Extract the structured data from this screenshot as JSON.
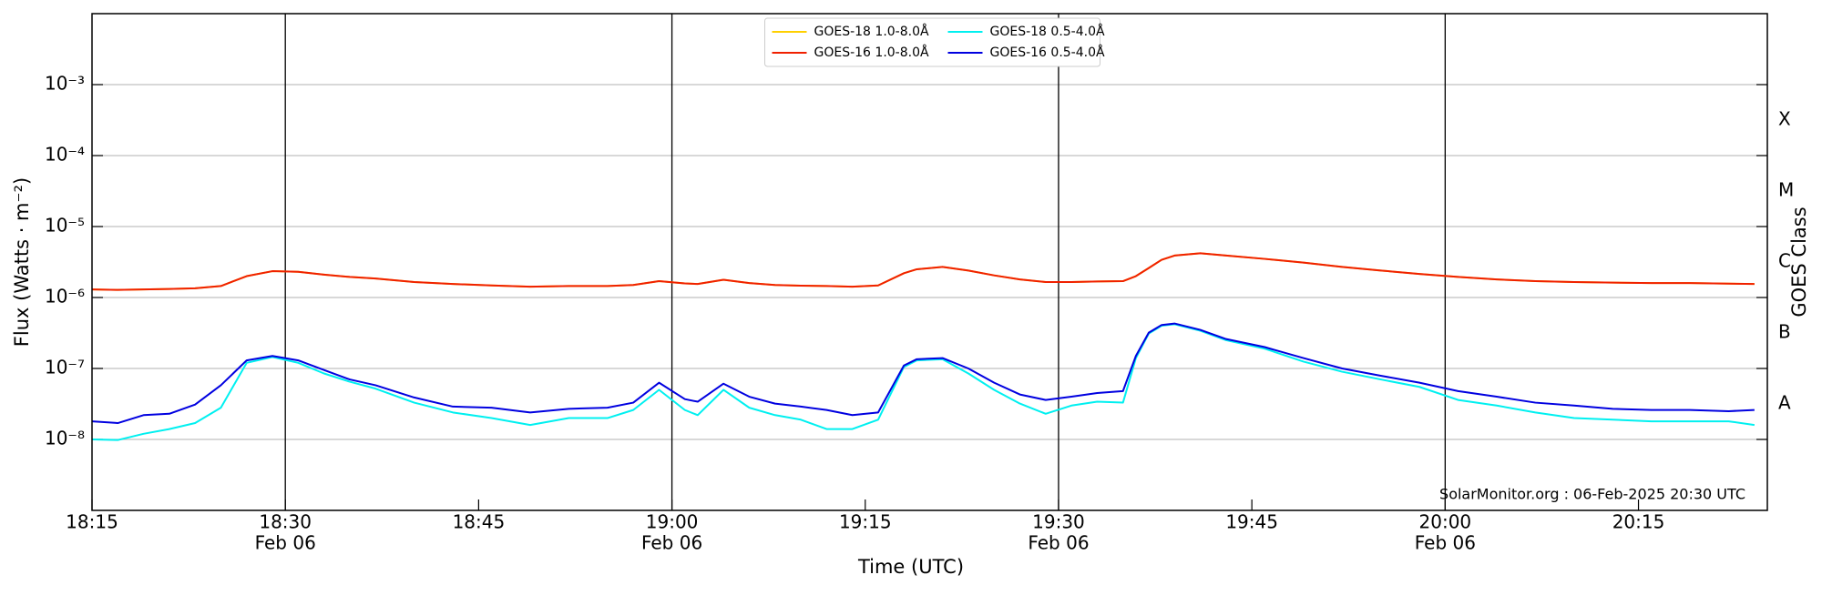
{
  "chart_data": {
    "type": "line",
    "xlabel": "Time (UTC)",
    "ylabel": "Flux (Watts · m⁻²)",
    "y2label": "GOES Class",
    "annotation": "SolarMonitor.org : 06-Feb-2025 20:30 UTC",
    "log_y": true,
    "grid": true,
    "legend_position": "upper center",
    "xlim": [
      "18:15",
      "20:25"
    ],
    "xticks": [
      "18:15",
      "18:30",
      "18:45",
      "19:00",
      "19:15",
      "19:30",
      "19:45",
      "20:00",
      "20:15"
    ],
    "xtick_sublabels": [
      null,
      "Feb 06",
      null,
      "Feb 06",
      null,
      "Feb 06",
      null,
      "Feb 06",
      null
    ],
    "ylim": [
      1e-09,
      0.01
    ],
    "yticks": [
      {
        "value": 1e-08,
        "label": "10⁻⁸"
      },
      {
        "value": 1e-07,
        "label": "10⁻⁷"
      },
      {
        "value": 1e-06,
        "label": "10⁻⁶"
      },
      {
        "value": 1e-05,
        "label": "10⁻⁵"
      },
      {
        "value": 0.0001,
        "label": "10⁻⁴"
      },
      {
        "value": 0.001,
        "label": "10⁻³"
      }
    ],
    "y2lim": [
      1e-09,
      0.01
    ],
    "y2ticks": [
      {
        "value": 3.16e-08,
        "label": "A"
      },
      {
        "value": 3.16e-07,
        "label": "B"
      },
      {
        "value": 3.16e-06,
        "label": "C"
      },
      {
        "value": 3.16e-05,
        "label": "M"
      },
      {
        "value": 0.000316,
        "label": "X"
      }
    ],
    "x": [
      "18:15",
      "18:17",
      "18:19",
      "18:21",
      "18:23",
      "18:25",
      "18:27",
      "18:29",
      "18:31",
      "18:33",
      "18:35",
      "18:37",
      "18:40",
      "18:43",
      "18:46",
      "18:49",
      "18:52",
      "18:55",
      "18:57",
      "18:59",
      "19:01",
      "19:02",
      "19:04",
      "19:06",
      "19:08",
      "19:10",
      "19:12",
      "19:14",
      "19:16",
      "19:18",
      "19:19",
      "19:21",
      "19:23",
      "19:25",
      "19:27",
      "19:29",
      "19:31",
      "19:33",
      "19:35",
      "19:36",
      "19:37",
      "19:38",
      "19:39",
      "19:41",
      "19:43",
      "19:46",
      "19:49",
      "19:52",
      "19:55",
      "19:58",
      "20:01",
      "20:04",
      "20:07",
      "20:10",
      "20:13",
      "20:16",
      "20:19",
      "20:22",
      "20:24"
    ],
    "series": [
      {
        "name": "GOES-18 1.0-8.0Å",
        "color": "#ffd000",
        "values": [
          1.3e-06,
          1.28e-06,
          1.3e-06,
          1.32e-06,
          1.35e-06,
          1.45e-06,
          2e-06,
          2.35e-06,
          2.3e-06,
          2.1e-06,
          1.95e-06,
          1.85e-06,
          1.65e-06,
          1.55e-06,
          1.48e-06,
          1.42e-06,
          1.45e-06,
          1.45e-06,
          1.5e-06,
          1.7e-06,
          1.58e-06,
          1.55e-06,
          1.78e-06,
          1.6e-06,
          1.5e-06,
          1.47e-06,
          1.45e-06,
          1.42e-06,
          1.48e-06,
          2.2e-06,
          2.5e-06,
          2.7e-06,
          2.4e-06,
          2.05e-06,
          1.8e-06,
          1.65e-06,
          1.65e-06,
          1.68e-06,
          1.7e-06,
          2e-06,
          2.6e-06,
          3.4e-06,
          3.9e-06,
          4.2e-06,
          3.9e-06,
          3.5e-06,
          3.1e-06,
          2.7e-06,
          2.4e-06,
          2.15e-06,
          1.95e-06,
          1.8e-06,
          1.7e-06,
          1.65e-06,
          1.62e-06,
          1.6e-06,
          1.6e-06,
          1.57e-06,
          1.55e-06
        ]
      },
      {
        "name": "GOES-16 1.0-8.0Å",
        "color": "#f02000",
        "values": [
          1.3e-06,
          1.28e-06,
          1.3e-06,
          1.32e-06,
          1.35e-06,
          1.45e-06,
          2e-06,
          2.35e-06,
          2.3e-06,
          2.1e-06,
          1.95e-06,
          1.85e-06,
          1.65e-06,
          1.55e-06,
          1.48e-06,
          1.42e-06,
          1.45e-06,
          1.45e-06,
          1.5e-06,
          1.7e-06,
          1.58e-06,
          1.55e-06,
          1.78e-06,
          1.6e-06,
          1.5e-06,
          1.47e-06,
          1.45e-06,
          1.42e-06,
          1.48e-06,
          2.2e-06,
          2.5e-06,
          2.7e-06,
          2.4e-06,
          2.05e-06,
          1.8e-06,
          1.65e-06,
          1.65e-06,
          1.68e-06,
          1.7e-06,
          2e-06,
          2.6e-06,
          3.4e-06,
          3.9e-06,
          4.2e-06,
          3.9e-06,
          3.5e-06,
          3.1e-06,
          2.7e-06,
          2.4e-06,
          2.15e-06,
          1.95e-06,
          1.8e-06,
          1.7e-06,
          1.65e-06,
          1.62e-06,
          1.6e-06,
          1.6e-06,
          1.57e-06,
          1.55e-06
        ]
      },
      {
        "name": "GOES-18 0.5-4.0Å",
        "color": "#00f0f0",
        "values": [
          1e-08,
          9.8e-09,
          1.2e-08,
          1.4e-08,
          1.7e-08,
          2.8e-08,
          1.2e-07,
          1.45e-07,
          1.2e-07,
          8.5e-08,
          6.5e-08,
          5.2e-08,
          3.3e-08,
          2.4e-08,
          2e-08,
          1.6e-08,
          2e-08,
          2e-08,
          2.6e-08,
          5e-08,
          2.6e-08,
          2.2e-08,
          5e-08,
          2.8e-08,
          2.2e-08,
          1.9e-08,
          1.4e-08,
          1.4e-08,
          1.9e-08,
          1.05e-07,
          1.3e-07,
          1.35e-07,
          8.5e-08,
          5e-08,
          3.2e-08,
          2.3e-08,
          3e-08,
          3.4e-08,
          3.3e-08,
          1.4e-07,
          3.1e-07,
          4e-07,
          4.2e-07,
          3.4e-07,
          2.5e-07,
          1.9e-07,
          1.25e-07,
          9e-08,
          7e-08,
          5.5e-08,
          3.6e-08,
          3e-08,
          2.4e-08,
          2e-08,
          1.9e-08,
          1.8e-08,
          1.8e-08,
          1.8e-08,
          1.6e-08
        ]
      },
      {
        "name": "GOES-16 0.5-4.0Å",
        "color": "#0000e0",
        "values": [
          1.8e-08,
          1.7e-08,
          2.2e-08,
          2.3e-08,
          3.1e-08,
          5.8e-08,
          1.3e-07,
          1.5e-07,
          1.3e-07,
          9.5e-08,
          7e-08,
          5.8e-08,
          3.9e-08,
          2.9e-08,
          2.8e-08,
          2.4e-08,
          2.7e-08,
          2.8e-08,
          3.3e-08,
          6.3e-08,
          3.7e-08,
          3.4e-08,
          6.1e-08,
          4e-08,
          3.2e-08,
          2.9e-08,
          2.6e-08,
          2.2e-08,
          2.4e-08,
          1.1e-07,
          1.35e-07,
          1.4e-07,
          1e-07,
          6.3e-08,
          4.3e-08,
          3.6e-08,
          4e-08,
          4.5e-08,
          4.8e-08,
          1.5e-07,
          3.2e-07,
          4.1e-07,
          4.3e-07,
          3.5e-07,
          2.6e-07,
          2e-07,
          1.4e-07,
          1e-07,
          7.9e-08,
          6.3e-08,
          4.8e-08,
          4e-08,
          3.3e-08,
          3e-08,
          2.7e-08,
          2.6e-08,
          2.6e-08,
          2.5e-08,
          2.6e-08
        ]
      }
    ]
  }
}
